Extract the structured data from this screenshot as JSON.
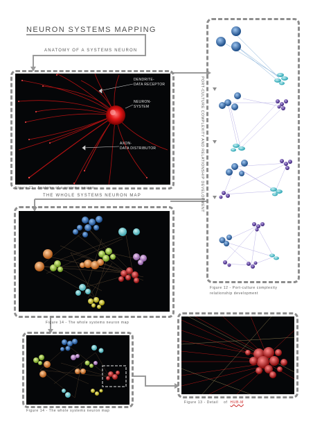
{
  "title": "NEURON SYSTEMS MAPPING",
  "subtitle": "ANATOMY OF A SYSTEMS NEURON",
  "anatomy": {
    "dendrite_label": "DENDRITE-\nDATA RECEPTOR",
    "neuron_label": "NEURON-\nSYSTEM",
    "axon_label": "AXON-\nDATA DISTRIBUTOR"
  },
  "figures": {
    "fig11": "Figure 11 - Anatomy of a systems neuron",
    "whole_map_heading": "THE WHOLE SYSTEMS NEURON MAP",
    "fig14_large": "Figure 14 - The whole systems neuron map",
    "fig14_small": "Figure 14 - The whole systems neuron map",
    "fig12": "Figure 12 - Port-culture complexity\nrelationship development",
    "fig13_prefix": "Figure 13 - Detail",
    "fig13_of": "of",
    "fig13_link": "HUB-M"
  },
  "sidebar_vertical_text": "PORT-CULTURE COMPLEXITY AND RELATIONSHIP DEVELOPMENT",
  "colors": {
    "panel_bg": "#050608",
    "neuron_red": "#e01515",
    "blue_node": "#3a78c0",
    "cyan_node": "#43c4cf",
    "purple_node": "#5b3aa0",
    "frame": "#8e8e8e"
  }
}
